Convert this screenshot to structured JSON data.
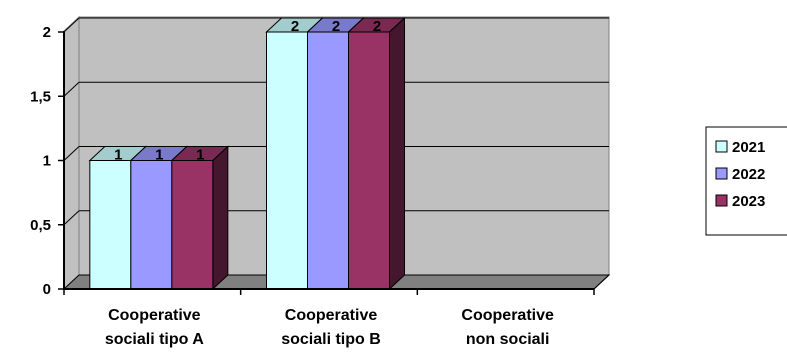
{
  "colors": {
    "wall": "#c0c0c0",
    "floor": "#808080",
    "grid": "#000000",
    "series": [
      "#ccffff",
      "#9999ff",
      "#993366"
    ]
  },
  "chart_data": {
    "type": "bar",
    "three_d": true,
    "categories": [
      [
        "Cooperative",
        "sociali tipo A"
      ],
      [
        "Cooperative",
        "sociali tipo B"
      ],
      [
        "Cooperative",
        "non sociali"
      ]
    ],
    "series": [
      {
        "name": "2021",
        "values": [
          1,
          2,
          0
        ]
      },
      {
        "name": "2022",
        "values": [
          1,
          2,
          0
        ]
      },
      {
        "name": "2023",
        "values": [
          1,
          2,
          0
        ]
      }
    ],
    "data_labels": [
      [
        "1",
        "2",
        ""
      ],
      [
        "1",
        "2",
        ""
      ],
      [
        "1",
        "2",
        ""
      ]
    ],
    "ylim": [
      0,
      2
    ],
    "yticks": [
      "0",
      "0,5",
      "1",
      "1,5",
      "2"
    ],
    "ytick_values": [
      0,
      0.5,
      1,
      1.5,
      2
    ],
    "grid": true,
    "legend_position": "right"
  }
}
